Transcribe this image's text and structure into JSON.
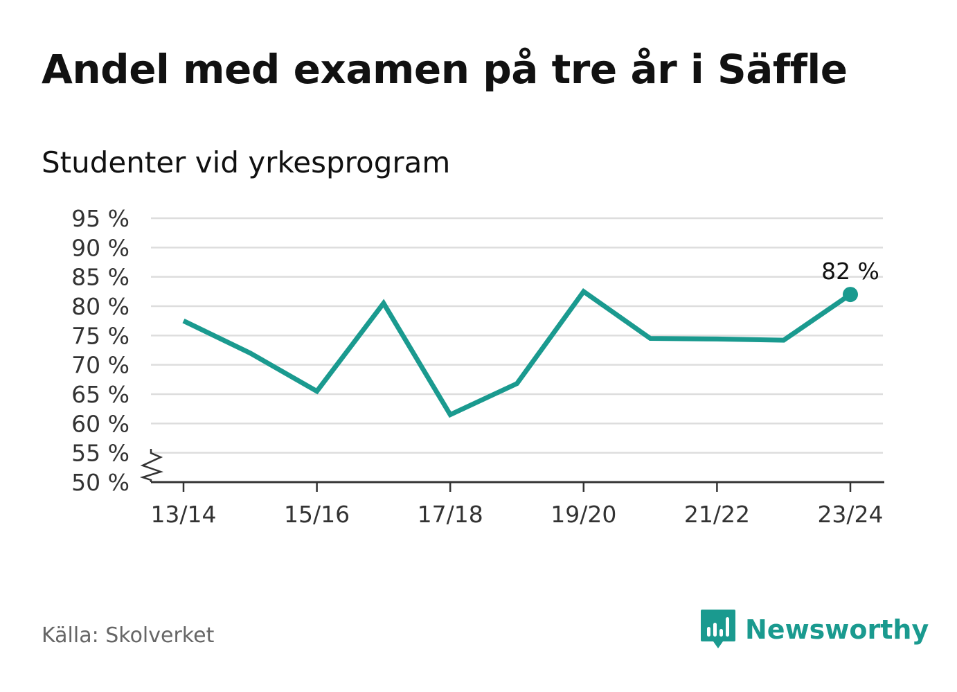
{
  "title": "Andel med examen på tre år i Säffle",
  "subtitle": "Studenter vid yrkesprogram",
  "source": "Källa: Skolverket",
  "brand": {
    "name": "Newsworthy",
    "icon": "bar-chart-speech-bubble-icon",
    "color": "#1a9a8f"
  },
  "chart_data": {
    "type": "line",
    "categories": [
      "13/14",
      "14/15",
      "15/16",
      "16/17",
      "17/18",
      "18/19",
      "19/20",
      "20/21",
      "21/22",
      "22/23",
      "23/24"
    ],
    "x_tick_labels": [
      "13/14",
      "15/16",
      "17/18",
      "19/20",
      "21/22",
      "23/24"
    ],
    "series": [
      {
        "values": [
          77.5,
          72,
          65.5,
          80.5,
          61.5,
          66.8,
          82.5,
          74.5,
          74.4,
          74.2,
          82
        ]
      }
    ],
    "y_ticks": [
      "50 %",
      "55 %",
      "60 %",
      "65 %",
      "70 %",
      "75 %",
      "80 %",
      "85 %",
      "90 %",
      "95 %"
    ],
    "ylim": [
      50,
      95
    ],
    "y_axis_break": true,
    "grid": true,
    "end_label": "82 %",
    "line_color": "#1a9a8f",
    "grid_color": "#dddddd",
    "axis_color": "#333333"
  }
}
